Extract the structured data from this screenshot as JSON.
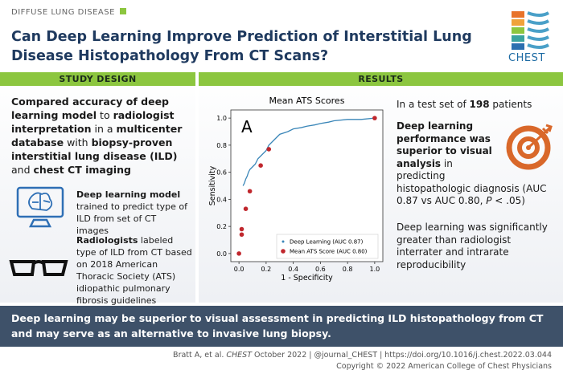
{
  "header": {
    "category": "DIFFUSE LUNG DISEASE",
    "title": "Can Deep Learning Improve Prediction of Interstitial Lung Disease Histopathology From CT Scans?",
    "logo": "CHEST"
  },
  "study_design": {
    "heading": "STUDY DESIGN",
    "summary": [
      {
        "text": "Compared accuracy of deep learning model",
        "style": "bold"
      },
      " to ",
      {
        "text": "radiologist interpretation",
        "style": "bold"
      },
      " in a ",
      {
        "text": "multicenter database",
        "style": "bold"
      },
      " with ",
      {
        "text": "biopsy-proven interstitial lung disease (ILD)",
        "style": "bold"
      },
      " and ",
      {
        "text": "chest CT imaging",
        "style": "bold"
      }
    ],
    "items": [
      [
        {
          "text": "Deep learning model",
          "style": "bold"
        },
        " trained to predict type of ILD from set of CT images"
      ],
      [
        {
          "text": "Radiologists",
          "style": "bold"
        },
        " labeled type of ILD from CT based on 2018 American Thoracic Society (ATS) idiopathic pulmonary fibrosis guidelines"
      ]
    ]
  },
  "results": {
    "heading": "RESULTS",
    "test_set": [
      "In a test set of ",
      {
        "text": "198",
        "style": "bold"
      },
      " patients"
    ],
    "finding": [
      {
        "text": "Deep learning performance was superior to visual analysis",
        "style": "bold"
      },
      " in predicting histopathologic diagnosis (AUC 0.87 vs AUC 0.80, ",
      {
        "text": "P",
        "style": "italic"
      },
      " < .05)"
    ],
    "reproducibility": [
      "Deep learning was significantly greater than radiologist interrater and intrarate reproducibility"
    ]
  },
  "chart_data": {
    "type": "scatter",
    "title": "Mean ATS Scores",
    "annotation": "A",
    "x_label": "1 - Specificity",
    "y_label": "Sensitivity",
    "xlim": [
      -0.06,
      1.06
    ],
    "ylim": [
      -0.06,
      1.06
    ],
    "xticks": [
      {
        "value": 0,
        "label": "0.0"
      },
      0.2,
      0.4,
      0.6,
      0.8,
      {
        "value": 1,
        "label": "1.0"
      }
    ],
    "yticks": [
      {
        "value": 0,
        "label": "0.0"
      },
      0.2,
      0.4,
      0.6,
      0.8,
      {
        "value": 1,
        "label": "1.0"
      }
    ],
    "legend": "lower right",
    "series": [
      {
        "name": "Deep Learning (AUC 0.87)",
        "color": "#3a86b8",
        "mode": "line",
        "x": [
          0.03,
          0.04,
          0.05,
          0.06,
          0.07,
          0.08,
          0.1,
          0.12,
          0.14,
          0.16,
          0.2,
          0.22,
          0.26,
          0.3,
          0.36,
          0.4,
          0.46,
          0.5,
          0.56,
          0.6,
          0.66,
          0.7,
          0.8,
          0.9,
          1.0
        ],
        "y": [
          0.5,
          0.52,
          0.55,
          0.57,
          0.6,
          0.62,
          0.64,
          0.66,
          0.7,
          0.72,
          0.76,
          0.8,
          0.84,
          0.88,
          0.9,
          0.92,
          0.93,
          0.94,
          0.95,
          0.96,
          0.97,
          0.98,
          0.99,
          0.99,
          1.0
        ]
      },
      {
        "name": "Mean ATS Score (AUC 0.80)",
        "color": "#c0272d",
        "mode": "markers",
        "x": [
          0,
          0.02,
          0.02,
          0.05,
          0.08,
          0.16,
          0.22,
          1.0
        ],
        "y": [
          0,
          0.14,
          0.18,
          0.33,
          0.46,
          0.65,
          0.77,
          1.0
        ]
      }
    ]
  },
  "conclusion": "Deep learning may be superior to visual assessment in predicting ILD histopathology from CT and may serve as an alternative to invasive lung biopsy.",
  "footer": {
    "citation": [
      "Bratt A, et al. ",
      {
        "text": "CHEST",
        "style": "italic"
      },
      " October 2022  |  @journal_CHEST  |  https://doi.org/10.1016/j.chest.2022.03.044"
    ],
    "copyright": "Copyright © 2022 American College of Chest Physicians"
  }
}
